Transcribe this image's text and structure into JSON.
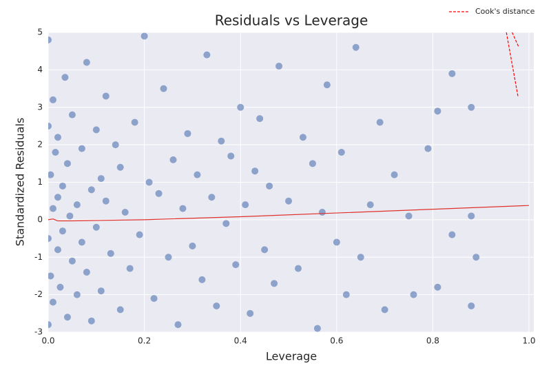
{
  "chart_data": {
    "type": "scatter",
    "title": "Residuals vs Leverage",
    "x_label": "Leverage",
    "y_label": "Standardized Residuals",
    "color": "#4c72b0",
    "x": [
      0,
      0,
      0,
      0,
      0.005,
      0.005,
      0.01,
      0.01,
      0.01,
      0.015,
      0.02,
      0.02,
      0.02,
      0.025,
      0.03,
      0.03,
      0.035,
      0.04,
      0.04,
      0.045,
      0.05,
      0.05,
      0.06,
      0.06,
      0.07,
      0.07,
      0.08,
      0.08,
      0.09,
      0.09,
      0.1,
      0.1,
      0.11,
      0.11,
      0.12,
      0.12,
      0.13,
      0.14,
      0.15,
      0.15,
      0.16,
      0.17,
      0.18,
      0.19,
      0.2,
      0.21,
      0.22,
      0.23,
      0.24,
      0.25,
      0.26,
      0.27,
      0.28,
      0.29,
      0.3,
      0.31,
      0.32,
      0.33,
      0.34,
      0.35,
      0.36,
      0.37,
      0.38,
      0.39,
      0.4,
      0.41,
      0.42,
      0.43,
      0.44,
      0.45,
      0.46,
      0.47,
      0.48,
      0.5,
      0.52,
      0.53,
      0.55,
      0.56,
      0.57,
      0.58,
      0.6,
      0.61,
      0.62,
      0.64,
      0.65,
      0.67,
      0.69,
      0.7,
      0.72,
      0.75,
      0.76,
      0.79,
      0.81,
      0.81,
      0.84,
      0.84,
      0.88,
      0.88,
      0.89,
      0.88
    ],
    "y": [
      4.8,
      2.5,
      -0.5,
      -2.8,
      1.2,
      -1.5,
      3.2,
      0.3,
      -2.2,
      1.8,
      -0.8,
      0.6,
      2.2,
      -1.8,
      0.9,
      -0.3,
      3.8,
      -2.6,
      1.5,
      0.1,
      -1.1,
      2.8,
      0.4,
      -2.0,
      1.9,
      -0.6,
      4.2,
      -1.4,
      0.8,
      -2.7,
      2.4,
      -0.2,
      1.1,
      -1.9,
      3.3,
      0.5,
      -0.9,
      2.0,
      -2.4,
      1.4,
      0.2,
      -1.3,
      2.6,
      -0.4,
      4.9,
      1.0,
      -2.1,
      0.7,
      3.5,
      -1.0,
      1.6,
      -2.8,
      0.3,
      2.3,
      -0.7,
      1.2,
      -1.6,
      4.4,
      0.6,
      -2.3,
      2.1,
      -0.1,
      1.7,
      -1.2,
      3.0,
      0.4,
      -2.5,
      1.3,
      2.7,
      -0.8,
      0.9,
      -1.7,
      4.1,
      0.5,
      -1.3,
      2.2,
      1.5,
      -2.9,
      0.2,
      3.6,
      -0.6,
      1.8,
      -2.0,
      4.6,
      -1.0,
      0.4,
      2.6,
      -2.4,
      1.2,
      0.1,
      -2.0,
      1.9,
      2.9,
      -1.8,
      3.9,
      -0.4,
      3.0,
      0.1,
      -1.0,
      -2.3
    ],
    "lowess": {
      "color": "#e0302a",
      "x": [
        0,
        0.01,
        0.02,
        0.05,
        0.1,
        0.2,
        0.4,
        0.6,
        0.8,
        1.0
      ],
      "y": [
        0,
        0.02,
        -0.03,
        -0.03,
        -0.02,
        0,
        0.08,
        0.18,
        0.28,
        0.38
      ]
    },
    "cooks_distance": {
      "name": "Cook's distance",
      "color": "#ff0000",
      "lines": [
        {
          "x": [
            0.953,
            0.977
          ],
          "y": [
            5,
            3.3
          ]
        },
        {
          "x": [
            0.965,
            0.979
          ],
          "y": [
            5,
            4.6
          ]
        }
      ]
    },
    "xlim": [
      0,
      1.01
    ],
    "ylim": [
      -3,
      5
    ],
    "xticks": [
      {
        "value": 0,
        "label": "0.0"
      },
      0.2,
      0.4,
      0.6,
      0.8,
      {
        "value": 1,
        "label": "1.0"
      }
    ],
    "yticks": [
      -3,
      -2,
      -1,
      0,
      1,
      2,
      3,
      4,
      5
    ],
    "grid": true,
    "legend_position": "top right"
  }
}
